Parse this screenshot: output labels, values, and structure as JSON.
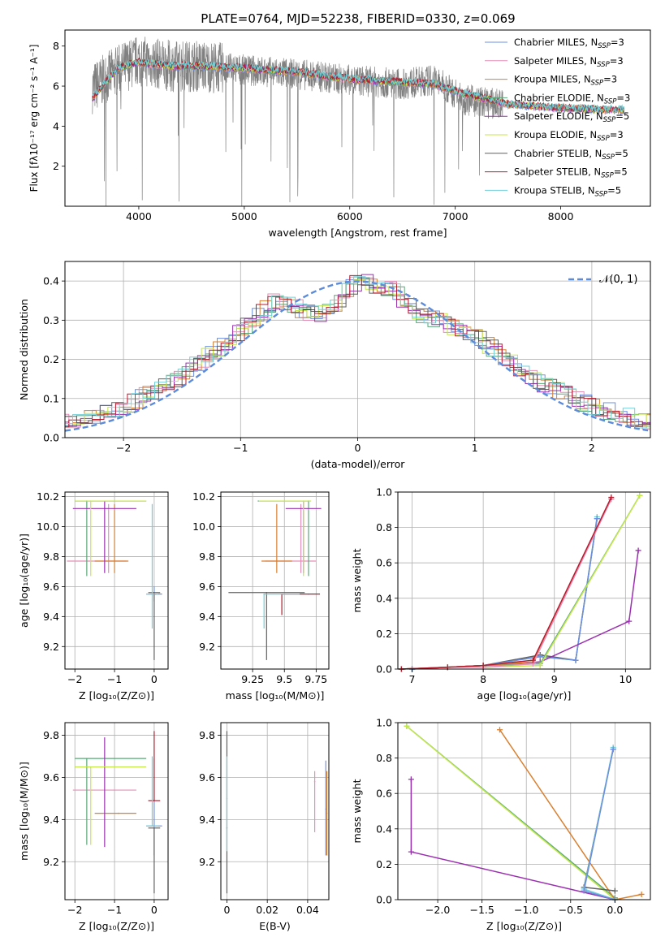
{
  "figure_title": "PLATE=0764, MJD=52238, FIBERID=0330, z=0.069",
  "colors": {
    "Chabrier MILES": "#6e8fe0",
    "Salpeter MILES": "#e58fb8",
    "Kroupa MILES": "#d98030",
    "Chabrier ELODIE": "#5aa878",
    "Salpeter ELODIE": "#9b30b0",
    "Kroupa ELODIE": "#c4e84a",
    "Chabrier STELIB": "#606060",
    "Salpeter STELIB": "#b51c2e",
    "Kroupa STELIB": "#70d0d8",
    "data": "#808080",
    "normal_curve": "#5b8bd9"
  },
  "chart_data": [
    {
      "id": "spectrum",
      "type": "line",
      "title": "PLATE=0764, MJD=52238, FIBERID=0330, z=0.069",
      "xlabel": "wavelength [Angstrom, rest frame]",
      "ylabel": "Flux [fλ10⁻¹⁷ erg cm⁻² s⁻¹ A⁻¹]",
      "xlim": [
        3300,
        8850
      ],
      "ylim": [
        0,
        8.8
      ],
      "xticks": [
        4000,
        5000,
        6000,
        7000,
        8000
      ],
      "yticks": [
        2,
        4,
        6,
        8
      ],
      "grid": false,
      "legend_position": "right",
      "data_range": [
        3560,
        7450
      ],
      "data_trend": {
        "x": [
          3560,
          3800,
          4000,
          4300,
          4600,
          5000,
          5500,
          6000,
          6500,
          6800,
          7100,
          7400
        ],
        "y": [
          5.9,
          6.8,
          7.3,
          7.0,
          7.0,
          6.8,
          6.6,
          6.3,
          6.1,
          6.3,
          5.3,
          5.1
        ]
      },
      "model_range": [
        3560,
        8600
      ],
      "model_trend": {
        "x": [
          3560,
          3800,
          4000,
          4300,
          4600,
          5000,
          5500,
          6000,
          6500,
          6800,
          7100,
          7500,
          8000,
          8600
        ],
        "y": [
          5.4,
          6.9,
          7.2,
          7.0,
          7.0,
          6.9,
          6.7,
          6.35,
          6.2,
          6.1,
          5.6,
          5.1,
          4.9,
          4.8
        ]
      },
      "series": [
        {
          "name": "Chabrier MILES",
          "nssp": "3"
        },
        {
          "name": "Salpeter MILES",
          "nssp": "3"
        },
        {
          "name": "Kroupa MILES",
          "nssp": "3"
        },
        {
          "name": "Chabrier ELODIE",
          "nssp": "3"
        },
        {
          "name": "Salpeter ELODIE",
          "nssp": "5"
        },
        {
          "name": "Kroupa ELODIE",
          "nssp": "3"
        },
        {
          "name": "Chabrier STELIB",
          "nssp": "5"
        },
        {
          "name": "Salpeter STELIB",
          "nssp": "5"
        },
        {
          "name": "Kroupa STELIB",
          "nssp": "5"
        }
      ]
    },
    {
      "id": "residuals",
      "type": "line",
      "xlabel": "(data-model)/error",
      "ylabel": "Normed distribution",
      "xlim": [
        -2.5,
        2.5
      ],
      "ylim": [
        0,
        0.45
      ],
      "xticks": [
        -2,
        -1,
        0,
        1,
        2
      ],
      "yticks": [
        0.0,
        0.1,
        0.2,
        0.3,
        0.4
      ],
      "grid": true,
      "legend_position": "top-right",
      "legend": "𝒩(0, 1)",
      "normal_mean": 0,
      "normal_sigma": 1,
      "histogram_bin_width": 0.1,
      "histogram_envelope": {
        "x": [
          -2.5,
          -2.0,
          -1.5,
          -1.0,
          -0.7,
          -0.5,
          -0.3,
          0.0,
          0.3,
          0.5,
          0.7,
          1.0,
          1.5,
          2.0,
          2.5
        ],
        "y": [
          0.04,
          0.075,
          0.16,
          0.27,
          0.35,
          0.33,
          0.31,
          0.4,
          0.38,
          0.32,
          0.3,
          0.26,
          0.15,
          0.08,
          0.04
        ]
      }
    },
    {
      "id": "age_vs_Z",
      "type": "scatter",
      "xlabel": "Z [log₁₀(Z/Z⊙)]",
      "ylabel": "age  [log₁₀(age/yr)]",
      "xlim": [
        -2.25,
        0.35
      ],
      "ylim": [
        9.05,
        10.23
      ],
      "xticks": [
        -2,
        -1,
        0
      ],
      "yticks": [
        9.2,
        9.4,
        9.6,
        9.8,
        10.0,
        10.2
      ],
      "grid": true,
      "points": [
        {
          "series": "Chabrier MILES",
          "x": 0.0,
          "y": 9.55,
          "x_err": [
            0.2,
            0.2
          ],
          "y_err": [
            0.05,
            0.05
          ]
        },
        {
          "series": "Salpeter MILES",
          "x": -1.15,
          "y": 9.77,
          "x_err": [
            1.05,
            0.45
          ],
          "y_err": [
            0.08,
            0.38
          ]
        },
        {
          "series": "Kroupa MILES",
          "x": -1.0,
          "y": 9.77,
          "x_err": [
            0.5,
            0.35
          ],
          "y_err": [
            0.08,
            0.38
          ]
        },
        {
          "series": "Chabrier ELODIE",
          "x": -1.7,
          "y": 10.17,
          "x_err": [
            0.3,
            1.5
          ],
          "y_err": [
            0.5,
            0.0
          ]
        },
        {
          "series": "Salpeter ELODIE",
          "x": -1.25,
          "y": 10.12,
          "x_err": [
            0.8,
            0.8
          ],
          "y_err": [
            0.43,
            0.05
          ]
        },
        {
          "series": "Kroupa ELODIE",
          "x": -1.6,
          "y": 10.17,
          "x_err": [
            0.4,
            1.4
          ],
          "y_err": [
            0.5,
            0.0
          ]
        },
        {
          "series": "Chabrier STELIB",
          "x": 0.0,
          "y": 9.56,
          "x_err": [
            0.15,
            0.15
          ],
          "y_err": [
            0.45,
            0.0
          ]
        },
        {
          "series": "Salpeter STELIB",
          "x": 0.0,
          "y": 9.55,
          "x_err": [
            0.0,
            0.05
          ],
          "y_err": [
            0.0,
            0.0
          ]
        },
        {
          "series": "Kroupa STELIB",
          "x": -0.05,
          "y": 9.55,
          "x_err": [
            0.15,
            0.15
          ],
          "y_err": [
            0.23,
            0.6
          ]
        }
      ]
    },
    {
      "id": "age_vs_mass",
      "type": "scatter",
      "xlabel": "mass [log₁₀(M/M⊙)]",
      "ylabel": "",
      "xlim": [
        9.0,
        9.85
      ],
      "ylim": [
        9.05,
        10.23
      ],
      "xticks": [
        9.25,
        9.5,
        9.75
      ],
      "yticks": [
        9.2,
        9.4,
        9.6,
        9.8,
        10.0,
        10.2
      ],
      "grid": true,
      "points": [
        {
          "series": "Chabrier MILES",
          "x": 9.69,
          "y": 9.55,
          "x_err": [
            0.0,
            0.0
          ],
          "y_err": [
            0.0,
            0.0
          ]
        },
        {
          "series": "Salpeter MILES",
          "x": 9.63,
          "y": 9.77,
          "x_err": [
            0.28,
            0.12
          ],
          "y_err": [
            0.08,
            0.38
          ]
        },
        {
          "series": "Kroupa MILES",
          "x": 9.44,
          "y": 9.77,
          "x_err": [
            0.12,
            0.12
          ],
          "y_err": [
            0.08,
            0.38
          ]
        },
        {
          "series": "Chabrier ELODIE",
          "x": 9.69,
          "y": 10.17,
          "x_err": [
            0.4,
            0.0
          ],
          "y_err": [
            0.5,
            0.0
          ]
        },
        {
          "series": "Salpeter ELODIE",
          "x": 9.65,
          "y": 10.12,
          "x_err": [
            0.14,
            0.14
          ],
          "y_err": [
            0.43,
            0.05
          ]
        },
        {
          "series": "Kroupa ELODIE",
          "x": 9.65,
          "y": 10.17,
          "x_err": [
            0.35,
            0.06
          ],
          "y_err": [
            0.5,
            0.0
          ]
        },
        {
          "series": "Chabrier STELIB",
          "x": 9.36,
          "y": 9.56,
          "x_err": [
            0.3,
            0.3
          ],
          "y_err": [
            0.45,
            0.0
          ]
        },
        {
          "series": "Salpeter STELIB",
          "x": 9.48,
          "y": 9.55,
          "x_err": [
            0.0,
            0.3
          ],
          "y_err": [
            0.14,
            0.0
          ]
        },
        {
          "series": "Kroupa STELIB",
          "x": 9.34,
          "y": 9.55,
          "x_err": [
            0.0,
            0.28
          ],
          "y_err": [
            0.23,
            0.0
          ]
        }
      ]
    },
    {
      "id": "cum_mass_vs_age",
      "type": "line",
      "xlabel": "age  [log₁₀(age/yr)]",
      "ylabel": "mass weight",
      "xlim": [
        6.8,
        10.35
      ],
      "ylim": [
        0,
        1.0
      ],
      "xticks": [
        7,
        8,
        9,
        10
      ],
      "yticks": [
        0.0,
        0.2,
        0.4,
        0.6,
        0.8,
        1.0
      ],
      "grid": true,
      "series": [
        {
          "name": "Kroupa STELIB",
          "x": [
            7.0,
            7.5,
            8.0,
            8.8,
            9.3,
            9.6
          ],
          "y": [
            0.0,
            0.01,
            0.02,
            0.07,
            0.05,
            0.86
          ]
        },
        {
          "name": "Chabrier STELIB",
          "x": [
            7.0,
            7.5,
            8.0,
            8.8,
            9.3,
            9.6
          ],
          "y": [
            0.0,
            0.01,
            0.02,
            0.08,
            0.05,
            0.85
          ]
        },
        {
          "name": "Chabrier MILES",
          "x": [
            7.0,
            7.5,
            8.0,
            8.8,
            9.3,
            9.6
          ],
          "y": [
            0.0,
            0.01,
            0.02,
            0.07,
            0.05,
            0.85
          ]
        },
        {
          "name": "Salpeter ELODIE",
          "x": [
            6.85,
            7.5,
            8.0,
            8.8,
            10.05,
            10.18
          ],
          "y": [
            0.0,
            0.01,
            0.02,
            0.04,
            0.27,
            0.67
          ]
        },
        {
          "name": "Chabrier ELODIE",
          "x": [
            6.85,
            7.5,
            8.0,
            8.8,
            10.2
          ],
          "y": [
            0.0,
            0.01,
            0.02,
            0.03,
            0.98
          ]
        },
        {
          "name": "Kroupa ELODIE",
          "x": [
            6.85,
            7.5,
            8.0,
            8.8,
            10.2
          ],
          "y": [
            0.0,
            0.01,
            0.01,
            0.02,
            0.98
          ]
        },
        {
          "name": "Kroupa MILES",
          "x": [
            6.85,
            7.5,
            8.0,
            8.7,
            9.8
          ],
          "y": [
            0.0,
            0.01,
            0.02,
            0.04,
            0.96
          ]
        },
        {
          "name": "Salpeter MILES",
          "x": [
            6.85,
            7.5,
            8.0,
            8.7,
            9.8
          ],
          "y": [
            0.0,
            0.01,
            0.01,
            0.03,
            0.96
          ]
        },
        {
          "name": "Salpeter STELIB",
          "x": [
            6.85,
            7.5,
            8.0,
            8.7,
            9.8
          ],
          "y": [
            0.0,
            0.01,
            0.02,
            0.05,
            0.97
          ]
        }
      ]
    },
    {
      "id": "mass_vs_Z",
      "type": "scatter",
      "xlabel": "Z [log₁₀(Z/Z⊙)]",
      "ylabel": "mass [log₁₀(M/M⊙)]",
      "xlim": [
        -2.25,
        0.35
      ],
      "ylim": [
        9.02,
        9.86
      ],
      "xticks": [
        -2,
        -1,
        0
      ],
      "yticks": [
        9.2,
        9.4,
        9.6,
        9.8
      ],
      "grid": true,
      "points": [
        {
          "series": "Chabrier MILES",
          "x": 0.0,
          "y": 9.37,
          "x_err": [
            0.2,
            0.2
          ],
          "y_err": [
            0.14,
            0.32
          ]
        },
        {
          "series": "Salpeter MILES",
          "x": -1.0,
          "y": 9.54,
          "x_err": [
            1.05,
            0.55
          ],
          "y_err": [
            0.0,
            0.0
          ]
        },
        {
          "series": "Kroupa MILES",
          "x": -0.9,
          "y": 9.43,
          "x_err": [
            0.6,
            0.45
          ],
          "y_err": [
            0.0,
            0.0
          ]
        },
        {
          "series": "Chabrier ELODIE",
          "x": -1.7,
          "y": 9.69,
          "x_err": [
            0.3,
            1.5
          ],
          "y_err": [
            0.41,
            0.0
          ]
        },
        {
          "series": "Salpeter ELODIE",
          "x": -1.25,
          "y": 9.65,
          "x_err": [
            0.0,
            0.0
          ],
          "y_err": [
            0.38,
            0.14
          ]
        },
        {
          "series": "Kroupa ELODIE",
          "x": -1.6,
          "y": 9.65,
          "x_err": [
            0.4,
            1.4
          ],
          "y_err": [
            0.37,
            0.0
          ]
        },
        {
          "series": "Chabrier STELIB",
          "x": 0.0,
          "y": 9.36,
          "x_err": [
            0.15,
            0.15
          ],
          "y_err": [
            0.31,
            0.0
          ]
        },
        {
          "series": "Salpeter STELIB",
          "x": 0.0,
          "y": 9.49,
          "x_err": [
            0.15,
            0.15
          ],
          "y_err": [
            0.0,
            0.33
          ]
        },
        {
          "series": "Kroupa STELIB",
          "x": -0.05,
          "y": 9.37,
          "x_err": [
            0.15,
            0.15
          ],
          "y_err": [
            0.0,
            0.33
          ]
        }
      ]
    },
    {
      "id": "mass_vs_ebv",
      "type": "scatter",
      "xlabel": "E(B-V)",
      "ylabel": "",
      "xlim": [
        -0.003,
        0.0505
      ],
      "ylim": [
        9.02,
        9.86
      ],
      "xticks": [
        0.0,
        0.02,
        0.04
      ],
      "yticks": [
        9.2,
        9.4,
        9.6,
        9.8
      ],
      "grid": true,
      "points": [
        {
          "series": "Chabrier STELIB",
          "x": 0.0,
          "y": 9.36,
          "y_err": [
            0.31,
            0.46
          ]
        },
        {
          "series": "Kroupa STELIB",
          "x": 0.0,
          "y": 9.5,
          "y_err": [
            0.25,
            0.2
          ]
        },
        {
          "series": "Salpeter MILES",
          "x": 0.0435,
          "y": 9.58,
          "y_err": [
            0.24,
            0.05
          ]
        },
        {
          "series": "Chabrier MILES",
          "x": 0.049,
          "y": 9.45,
          "y_err": [
            0.22,
            0.23
          ]
        },
        {
          "series": "Kroupa MILES",
          "x": 0.0495,
          "y": 9.43,
          "y_err": [
            0.2,
            0.2
          ]
        }
      ]
    },
    {
      "id": "cum_mass_vs_Z",
      "type": "line",
      "xlabel": "Z [log₁₀(Z/Z⊙)]",
      "ylabel": "mass weight",
      "xlim": [
        -2.45,
        0.4
      ],
      "ylim": [
        0,
        1.0
      ],
      "xticks": [
        -2.0,
        -1.5,
        -1.0,
        -0.5,
        0.0
      ],
      "tick_labels": [
        "−2.0",
        "−1.5",
        "−1.0",
        "−0.5",
        "0.0"
      ],
      "yticks": [
        0.0,
        0.2,
        0.4,
        0.6,
        0.8,
        1.0
      ],
      "grid": true,
      "series": [
        {
          "name": "Salpeter ELODIE",
          "x": [
            -2.3,
            -2.3,
            0.0
          ],
          "y": [
            0.68,
            0.27,
            0.0
          ]
        },
        {
          "name": "Chabrier ELODIE",
          "x": [
            -2.35,
            0.0
          ],
          "y": [
            0.98,
            0.01
          ]
        },
        {
          "name": "Kroupa ELODIE",
          "x": [
            -2.35,
            0.0
          ],
          "y": [
            0.98,
            0.0
          ]
        },
        {
          "name": "Kroupa MILES",
          "x": [
            -1.3,
            0.0,
            0.3
          ],
          "y": [
            0.96,
            0.0,
            0.03
          ]
        },
        {
          "name": "Chabrier STELIB",
          "x": [
            -0.02,
            -0.35,
            0.0
          ],
          "y": [
            0.85,
            0.07,
            0.05
          ]
        },
        {
          "name": "Kroupa STELIB",
          "x": [
            -0.02,
            -0.35,
            0.0
          ],
          "y": [
            0.86,
            0.06,
            0.0
          ]
        },
        {
          "name": "Chabrier MILES",
          "x": [
            -0.02,
            -0.35,
            0.0
          ],
          "y": [
            0.85,
            0.05,
            0.0
          ]
        }
      ]
    }
  ]
}
